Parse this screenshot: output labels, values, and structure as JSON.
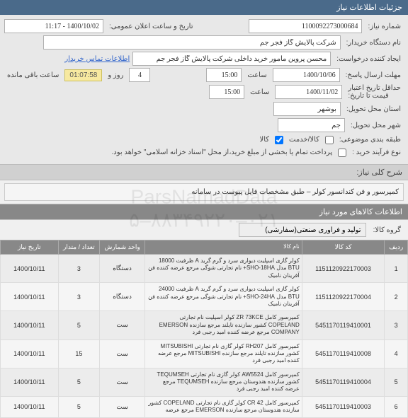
{
  "header": {
    "title": "جزئیات اطلاعات نیاز"
  },
  "form": {
    "need_no_label": "شماره نیاز:",
    "need_no": "1100092273000684",
    "announce_label": "تاریخ و ساعت اعلان عمومی:",
    "announce": "1400/10/02 - 11:17",
    "buyer_org_label": "نام دستگاه خریدار:",
    "buyer_org": "شرکت پالایش گاز فجر جم",
    "requester_label": "ایجاد کننده درخواست:",
    "requester": "محسن پروین مامور خرید داخلی شرکت پالایش گاز فجر جم",
    "contact_link": "اطلاعات تماس خریدار",
    "reply_deadline_label": "مهلت ارسال پاسخ:",
    "reply_date": "1400/10/06",
    "time_label": "ساعت",
    "reply_time": "15:00",
    "day_label": "روز و",
    "days": "4",
    "remain_label": "ساعت باقی مانده",
    "countdown": "01:07:58",
    "credit_min_label": "حداقل تاریخ اعتبار",
    "credit_min_sub": "قیمت تا تاریخ:",
    "credit_date": "1400/11/02",
    "credit_time": "15:00",
    "province_label": "استان محل تحویل:",
    "province": "بوشهر",
    "city_label": "شهر محل تحویل:",
    "city": "جم",
    "topic_label": "طبقه بندی موضوعی:",
    "chk_service": "کالا/خدمت",
    "chk_goods": "کالا",
    "buy_type_label": "نوع فرآیند خرید :",
    "buy_type_note": "پرداخت تمام یا بخشی از مبلغ خرید،از محل \"اسناد خزانه اسلامی\" خواهد بود."
  },
  "desc": {
    "label": "شرح کلی نیاز:",
    "text": "کمپرسور و فن کندانسور کولر – طبق مشخصات فایل پیوست در سامانه"
  },
  "goods_header": "اطلاعات کالاهای مورد نیاز",
  "group": {
    "label": "گروه کالا:",
    "value": "تولید و فرآوری صنعتی(سفارشی)"
  },
  "table": {
    "headers": {
      "idx": "ردیف",
      "code": "کد کالا",
      "name": "نام کالا",
      "unit": "واحد شمارش",
      "qty": "تعداد / متدار",
      "date": "تاریخ نیاز"
    },
    "rows": [
      {
        "idx": "1",
        "code": "1151120922170003",
        "name": "کولر گازی اسپلیت دیواری سرد و گرم گرید A ظرفیت 18000 BTU مدل SHO-18HA+ نام تجارتی شوگی مرجع عرضه کننده فن آفرینان نامیک",
        "unit": "دستگاه",
        "qty": "3",
        "date": "1400/10/11"
      },
      {
        "idx": "2",
        "code": "1151120922170004",
        "name": "کولر گازی اسپلیت دیواری سرد و گرم گرید A ظرفیت 24000 BTU مدل SHO-24HA+ نام تجارتی شوگی مرجع عرضه کننده فن آفرینان نامیک",
        "unit": "دستگاه",
        "qty": "3",
        "date": "1400/10/11"
      },
      {
        "idx": "3",
        "code": "5451170119410001",
        "name": "کمپرسور کامل ZR 73KCE کولر اسپلیت نام تجارتی COPELAND کشور سازنده تایلند مرجع سازنده EMERSON COMPANY مرجع عرضه کننده امید رجبی فرد",
        "unit": "ست",
        "qty": "5",
        "date": "1400/10/11"
      },
      {
        "idx": "4",
        "code": "5451170119410008",
        "name": "کمپرسور کامل RH207 کولر گازی نام تجارتی MITSUBISHI کشور سازنده تایلند مرجع سازنده MITSUBISHI مرجع عرضه کننده امید رجبی فرد",
        "unit": "ست",
        "qty": "15",
        "date": "1400/10/11"
      },
      {
        "idx": "5",
        "code": "5451170119410004",
        "name": "کمپرسور کامل AW5524 کولر گازی نام تجارتی TEQUMSEH کشور سازنده هندوستان مرجع سازنده TEQUMSEH مرجع عرضه کننده امید رجبی فرد",
        "unit": "ست",
        "qty": "5",
        "date": "1400/10/11"
      },
      {
        "idx": "6",
        "code": "5451170119410003",
        "name": "کمپرسور کامل CR 42 کولر گازی نام تجارتی COPELAND کشور سازنده هندوستان مرجع سازنده EMERSON مرجع عرضه",
        "unit": "ست",
        "qty": "5",
        "date": "1400/10/11"
      }
    ]
  },
  "watermark": {
    "line1": "ParsNamadData",
    "line2": "۰۲۱–۸۸۳۴۹۲۲۰–۵"
  }
}
